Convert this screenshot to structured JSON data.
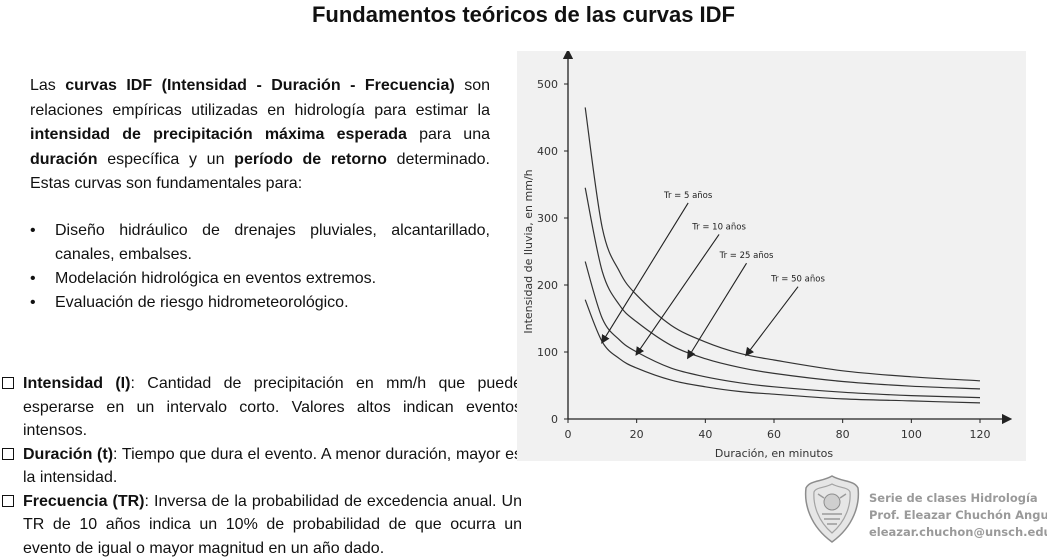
{
  "title": "Fundamentos teóricos de las curvas IDF",
  "intro": {
    "t1": "Las ",
    "b1": "curvas IDF (Intensidad - Duración - Frecuencia)",
    "t2": " son relaciones empíricas utilizadas en hidrología para estimar la ",
    "b2": "intensidad de precipitación máxima esperada",
    "t3": " para una ",
    "b3": "duración",
    "t4": " específica y un ",
    "b4": "período de retorno",
    "t5": " determinado. Estas curvas son fundamentales para:"
  },
  "bullets": [
    "Diseño hidráulico de drenajes pluviales, alcantarillado, canales, embalses.",
    "Modelación hidrológica en eventos extremos.",
    "Evaluación de riesgo hidrometeorológico."
  ],
  "bullet_symbol": "•",
  "definitions": [
    {
      "term": "Intensidad (I)",
      "text": ": Cantidad de precipitación en mm/h que puede esperarse en un intervalo corto. Valores altos indican eventos intensos."
    },
    {
      "term": "Duración (t)",
      "text": ": Tiempo que dura el evento. A menor duración, mayor es la intensidad."
    },
    {
      "term": "Frecuencia (TR)",
      "text": ": Inversa de la probabilidad de excedencia anual. Un TR de 10 años indica un 10% de probabilidad de que ocurra un evento de igual o mayor magnitud en un año dado."
    }
  ],
  "footer": {
    "line1": "Serie de clases Hidrología",
    "line2": "Prof. Eleazar Chuchón Angulo",
    "line3": "eleazar.chuchon@unsch.edu.pe"
  },
  "chart_data": {
    "type": "line",
    "xlabel": "Duración, en minutos",
    "ylabel": "Intensidad de lluvia, en mm/h",
    "xlim": [
      0,
      125
    ],
    "ylim": [
      0,
      520
    ],
    "xticks": [
      0,
      20,
      40,
      60,
      80,
      100,
      120
    ],
    "yticks": [
      0,
      100,
      200,
      300,
      400,
      500
    ],
    "grid": false,
    "x": [
      5,
      10,
      15,
      20,
      30,
      40,
      50,
      60,
      80,
      100,
      120
    ],
    "series": [
      {
        "name": "Tr = 50 años",
        "values": [
          465,
          285,
          220,
          185,
          140,
          115,
          98,
          88,
          72,
          63,
          57
        ]
      },
      {
        "name": "Tr = 25 años",
        "values": [
          345,
          220,
          170,
          145,
          110,
          90,
          77,
          68,
          56,
          49,
          45
        ]
      },
      {
        "name": "Tr = 10 años",
        "values": [
          235,
          150,
          118,
          100,
          76,
          63,
          54,
          48,
          40,
          35,
          32
        ]
      },
      {
        "name": "Tr = 5 años",
        "values": [
          178,
          115,
          90,
          76,
          58,
          48,
          41,
          37,
          30,
          27,
          24
        ]
      }
    ],
    "annotations": [
      {
        "text": "Tr = 5 años",
        "x": 35,
        "y": 330,
        "arrow_to": [
          10,
          115
        ]
      },
      {
        "text": "Tr = 10 años",
        "x": 44,
        "y": 283,
        "arrow_to": [
          20,
          97
        ]
      },
      {
        "text": "Tr = 25 años",
        "x": 52,
        "y": 240,
        "arrow_to": [
          35,
          92
        ]
      },
      {
        "text": "Tr = 50 años",
        "x": 67,
        "y": 205,
        "arrow_to": [
          52,
          96
        ]
      }
    ]
  }
}
